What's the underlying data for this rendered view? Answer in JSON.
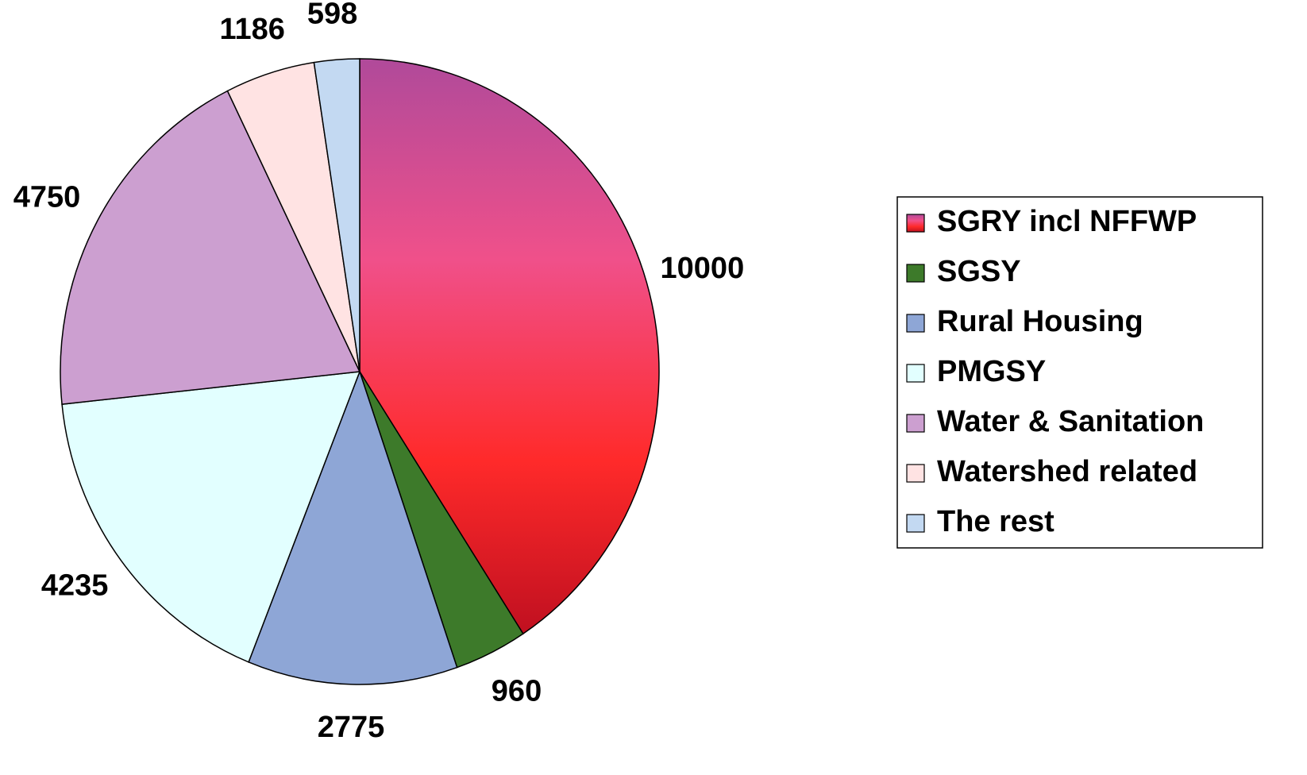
{
  "chart_data": {
    "type": "pie",
    "categories": [
      "SGRY incl NFFWP",
      "SGSY",
      "Rural Housing",
      "PMGSY",
      "Water & Sanitation",
      "Watershed related",
      "The rest"
    ],
    "values": [
      10000,
      960,
      2775,
      4235,
      4750,
      1186,
      598
    ],
    "colors": [
      "#f0305a",
      "#3d7a2a",
      "#8ea6d6",
      "#e2ffff",
      "#cc9fd0",
      "#ffe3e3",
      "#c3d9f2"
    ],
    "legend": "right"
  }
}
